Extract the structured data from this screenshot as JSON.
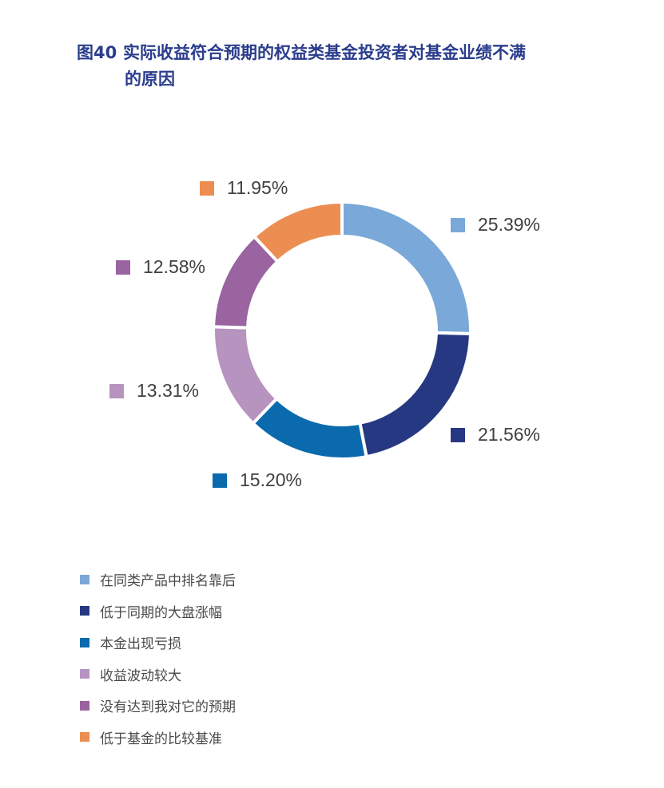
{
  "title": {
    "number": "图40",
    "line1": "实际收益符合预期的权益类基金投资者对基金业绩不满",
    "line2": "的原因"
  },
  "chart_data": {
    "type": "pie",
    "subtype": "donut",
    "title": "图40 实际收益符合预期的权益类基金投资者对基金业绩不满的原因",
    "categories": [
      "在同类产品中排名靠后",
      "低于同期的大盘涨幅",
      "本金出现亏损",
      "收益波动较大",
      "没有达到我对它的预期",
      "低于基金的比较基准"
    ],
    "values": [
      25.39,
      21.56,
      15.2,
      13.31,
      12.58,
      11.95
    ],
    "labels": [
      "25.39%",
      "21.56%",
      "15.20%",
      "13.31%",
      "12.58%",
      "11.95%"
    ],
    "colors": [
      "#7aa8d8",
      "#273882",
      "#0a6aad",
      "#b793c0",
      "#99649f",
      "#ec8d52"
    ],
    "legend_position": "bottom-left",
    "start_angle": "12 o'clock, clockwise"
  },
  "legend": [
    {
      "label": "在同类产品中排名靠后",
      "color": "#7aa8d8"
    },
    {
      "label": "低于同期的大盘涨幅",
      "color": "#273882"
    },
    {
      "label": "本金出现亏损",
      "color": "#0a6aad"
    },
    {
      "label": "收益波动较大",
      "color": "#b793c0"
    },
    {
      "label": "没有达到我对它的预期",
      "color": "#99649f"
    },
    {
      "label": "低于基金的比较基准",
      "color": "#ec8d52"
    }
  ]
}
